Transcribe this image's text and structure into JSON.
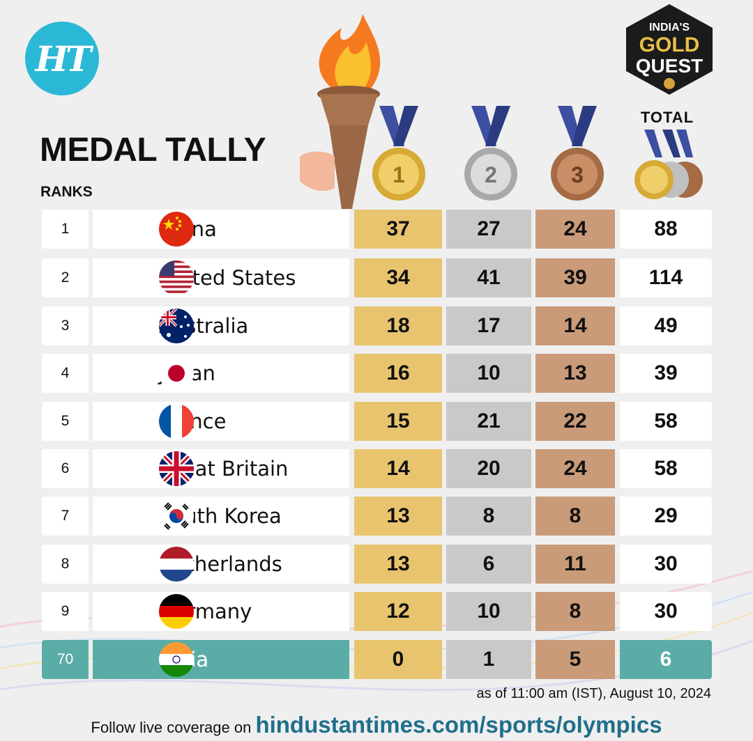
{
  "header": {
    "logo_text": "HT",
    "title": "MEDAL TALLY",
    "ranks_label": "RANKS",
    "total_label": "TOTAL",
    "badge_lines": [
      "INDIA'S",
      "GOLD",
      "QUEST"
    ],
    "medal_numbers": [
      "1",
      "2",
      "3"
    ]
  },
  "rows": [
    {
      "rank": "1",
      "country": "China",
      "flag": "china-flag-icon",
      "gold": "37",
      "silver": "27",
      "bronze": "24",
      "total": "88"
    },
    {
      "rank": "2",
      "country": "United States",
      "flag": "usa-flag-icon",
      "gold": "34",
      "silver": "41",
      "bronze": "39",
      "total": "114"
    },
    {
      "rank": "3",
      "country": "Australia",
      "flag": "australia-flag-icon",
      "gold": "18",
      "silver": "17",
      "bronze": "14",
      "total": "49"
    },
    {
      "rank": "4",
      "country": "Japan",
      "flag": "japan-flag-icon",
      "gold": "16",
      "silver": "10",
      "bronze": "13",
      "total": "39"
    },
    {
      "rank": "5",
      "country": "France",
      "flag": "france-flag-icon",
      "gold": "15",
      "silver": "21",
      "bronze": "22",
      "total": "58"
    },
    {
      "rank": "6",
      "country": "Great Britain",
      "flag": "uk-flag-icon",
      "gold": "14",
      "silver": "20",
      "bronze": "24",
      "total": "58"
    },
    {
      "rank": "7",
      "country": "South Korea",
      "flag": "south-korea-flag-icon",
      "gold": "13",
      "silver": "8",
      "bronze": "8",
      "total": "29"
    },
    {
      "rank": "8",
      "country": "Netherlands",
      "flag": "netherlands-flag-icon",
      "gold": "13",
      "silver": "6",
      "bronze": "11",
      "total": "30"
    },
    {
      "rank": "9",
      "country": "Germany",
      "flag": "germany-flag-icon",
      "gold": "12",
      "silver": "10",
      "bronze": "8",
      "total": "30"
    },
    {
      "rank": "70",
      "country": "India",
      "flag": "india-flag-icon",
      "gold": "0",
      "silver": "1",
      "bronze": "5",
      "total": "6"
    }
  ],
  "footer": {
    "as_of": "as of 11:00 am (IST), August 10, 2024",
    "follow_prefix": "Follow live coverage on ",
    "follow_link": "hindustantimes.com/sports/olympics"
  },
  "colors": {
    "gold": "#e8c46f",
    "silver": "#c9c9c9",
    "bronze": "#c99b79",
    "highlight": "#5aada6",
    "ht_blue": "#2bb8d6"
  }
}
